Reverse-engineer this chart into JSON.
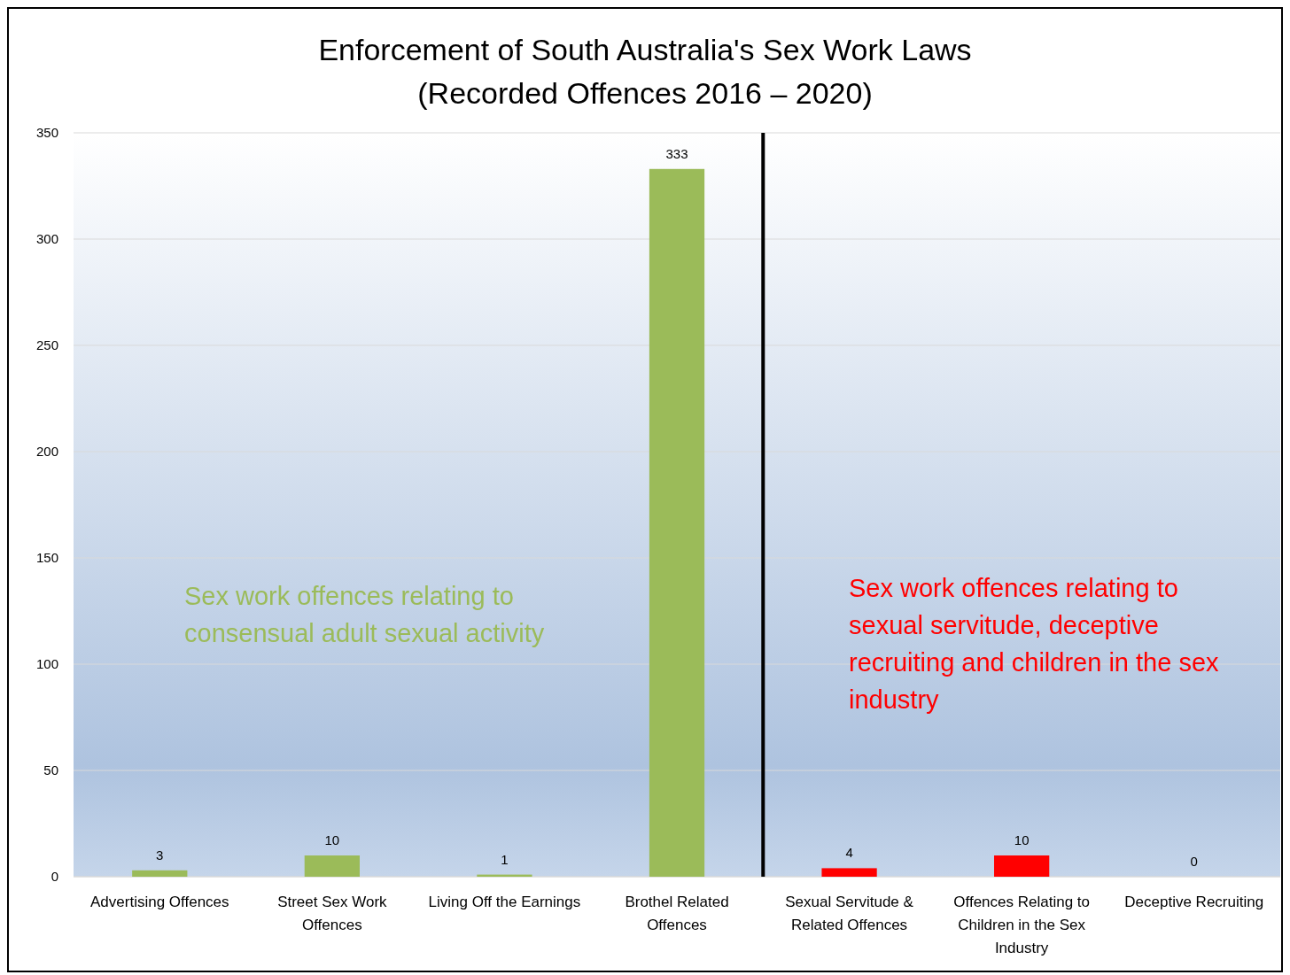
{
  "chart_data": {
    "type": "bar",
    "title": "Enforcement of South Australia's Sex Work Laws",
    "subtitle": "(Recorded Offences 2016 – 2020)",
    "categories": [
      "Advertising Offences",
      "Street Sex Work Offences",
      "Living Off the Earnings",
      "Brothel Related Offences",
      "Sexual Servitude & Related Offences",
      "Offences Relating to Children in the Sex Industry",
      "Deceptive Recruiting"
    ],
    "values": [
      3,
      10,
      1,
      333,
      4,
      10,
      0
    ],
    "colors": [
      "#9bbb59",
      "#9bbb59",
      "#9bbb59",
      "#9bbb59",
      "#ff0000",
      "#ff0000",
      "#ff0000"
    ],
    "ylim": [
      0,
      350
    ],
    "yticks": [
      0,
      50,
      100,
      150,
      200,
      250,
      300,
      350
    ],
    "grid": "y",
    "data_labels": true,
    "ref_lines": [
      {
        "axis": "x",
        "value": "Sexual Servitude & Related Offences",
        "color": "#000000"
      }
    ],
    "annotations": [
      "Sex work offences relating to consensual adult sexual activity",
      "Sex work offences relating to sexual servitude, deceptive recruiting and children in the sex industry"
    ]
  }
}
